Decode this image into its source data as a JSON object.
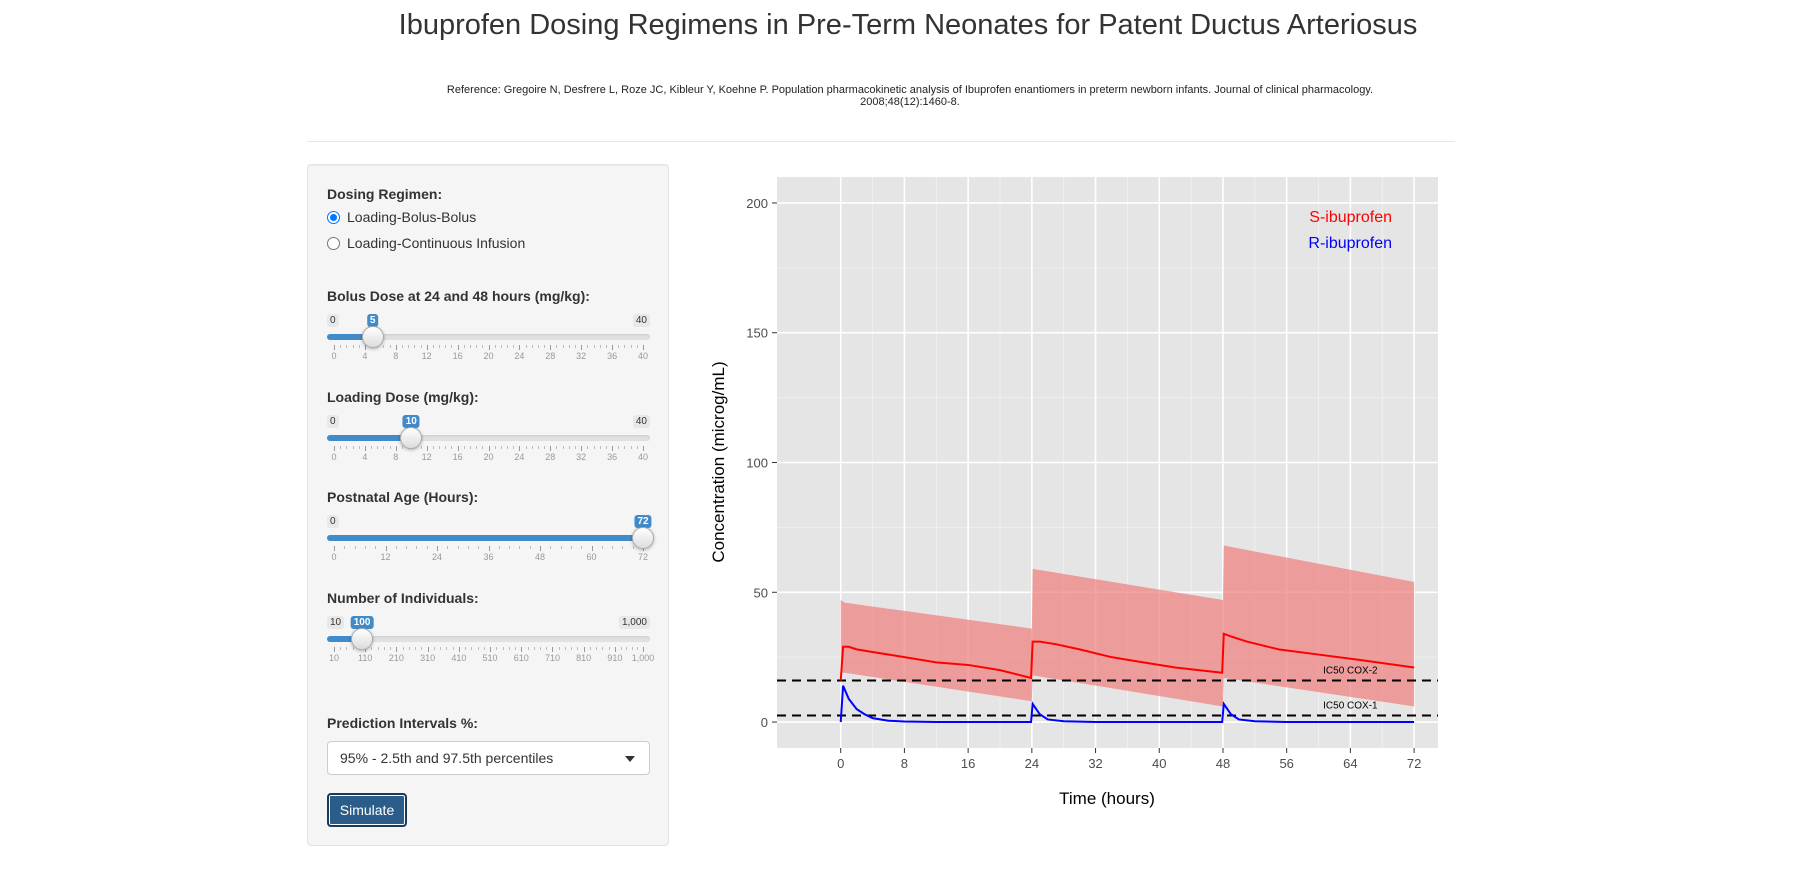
{
  "title": "Ibuprofen Dosing Regimens in Pre-Term Neonates for Patent Ductus Arteriosus",
  "reference": "Reference: Gregoire N, Desfrere L, Roze JC, Kibleur Y, Koehne P. Population pharmacokinetic analysis of Ibuprofen enantiomers in preterm newborn infants. Journal of clinical pharmacology. 2008;48(12):1460-8.",
  "sidebar": {
    "regimen_label": "Dosing Regimen:",
    "regimen_options": [
      {
        "label": "Loading-Bolus-Bolus",
        "checked": true
      },
      {
        "label": "Loading-Continuous Infusion",
        "checked": false
      }
    ],
    "sliders": [
      {
        "label": "Bolus Dose at 24 and 48 hours (mg/kg):",
        "min": 0,
        "max": 40,
        "value": 5,
        "min_label": "0",
        "max_label": "40",
        "value_label": "5",
        "ticks": [
          {
            "v": 0,
            "t": "0"
          },
          {
            "v": 4,
            "t": "4"
          },
          {
            "v": 8,
            "t": "8"
          },
          {
            "v": 12,
            "t": "12"
          },
          {
            "v": 16,
            "t": "16"
          },
          {
            "v": 20,
            "t": "20"
          },
          {
            "v": 24,
            "t": "24"
          },
          {
            "v": 28,
            "t": "28"
          },
          {
            "v": 32,
            "t": "32"
          },
          {
            "v": 36,
            "t": "36"
          },
          {
            "v": 40,
            "t": "40"
          }
        ]
      },
      {
        "label": "Loading Dose (mg/kg):",
        "min": 0,
        "max": 40,
        "value": 10,
        "min_label": "0",
        "max_label": "40",
        "value_label": "10",
        "ticks": [
          {
            "v": 0,
            "t": "0"
          },
          {
            "v": 4,
            "t": "4"
          },
          {
            "v": 8,
            "t": "8"
          },
          {
            "v": 12,
            "t": "12"
          },
          {
            "v": 16,
            "t": "16"
          },
          {
            "v": 20,
            "t": "20"
          },
          {
            "v": 24,
            "t": "24"
          },
          {
            "v": 28,
            "t": "28"
          },
          {
            "v": 32,
            "t": "32"
          },
          {
            "v": 36,
            "t": "36"
          },
          {
            "v": 40,
            "t": "40"
          }
        ]
      },
      {
        "label": "Postnatal Age (Hours):",
        "min": 0,
        "max": 72,
        "value": 72,
        "min_label": "0",
        "max_label": "",
        "value_label": "72",
        "ticks": [
          {
            "v": 0,
            "t": "0"
          },
          {
            "v": 12,
            "t": "12"
          },
          {
            "v": 24,
            "t": "24"
          },
          {
            "v": 36,
            "t": "36"
          },
          {
            "v": 48,
            "t": "48"
          },
          {
            "v": 60,
            "t": "60"
          },
          {
            "v": 72,
            "t": "72"
          }
        ]
      },
      {
        "label": "Number of Individuals:",
        "min": 10,
        "max": 1000,
        "value": 100,
        "min_label": "10",
        "max_label": "1,000",
        "value_label": "100",
        "ticks": [
          {
            "v": 10,
            "t": "10"
          },
          {
            "v": 110,
            "t": "110"
          },
          {
            "v": 210,
            "t": "210"
          },
          {
            "v": 310,
            "t": "310"
          },
          {
            "v": 410,
            "t": "410"
          },
          {
            "v": 510,
            "t": "510"
          },
          {
            "v": 610,
            "t": "610"
          },
          {
            "v": 710,
            "t": "710"
          },
          {
            "v": 810,
            "t": "810"
          },
          {
            "v": 910,
            "t": "910"
          },
          {
            "v": 1000,
            "t": "1,000"
          }
        ]
      }
    ],
    "pi_label": "Prediction Intervals %:",
    "pi_value": "95% - 2.5th and 97.5th percentiles",
    "simulate_label": "Simulate"
  },
  "chart_data": {
    "type": "line",
    "xlabel": "Time (hours)",
    "ylabel": "Concentration (microg/mL)",
    "xlim": [
      -8,
      75
    ],
    "ylim": [
      -10,
      210
    ],
    "x_ticks": [
      0,
      8,
      16,
      24,
      32,
      40,
      48,
      56,
      64,
      72
    ],
    "y_ticks": [
      0,
      50,
      100,
      150,
      200
    ],
    "legend_position": "top-right",
    "legend": [
      {
        "label": "S-ibuprofen",
        "color": "#ff0000"
      },
      {
        "label": "R-ibuprofen",
        "color": "#0000ff"
      }
    ],
    "bands": [
      {
        "series": "S-ibuprofen",
        "color": "#f08080",
        "x": [
          0,
          0.5,
          24,
          24.1,
          48,
          48.1,
          72
        ],
        "upper": [
          47,
          46,
          36,
          59,
          47,
          68,
          54
        ],
        "lower": [
          19,
          19,
          8,
          18,
          6,
          17,
          6
        ]
      }
    ],
    "series": [
      {
        "name": "S-ibuprofen",
        "color": "#ff0000",
        "x": [
          0,
          0.3,
          1,
          2,
          4,
          8,
          12,
          16,
          20,
          23.9,
          24.1,
          25,
          27,
          30,
          34,
          38,
          42,
          47.9,
          48.1,
          49,
          51,
          55,
          60,
          65,
          72
        ],
        "y": [
          16,
          29,
          29,
          28,
          27,
          25,
          23,
          22,
          20,
          17,
          31,
          31,
          30,
          28,
          25,
          23,
          21,
          19,
          34,
          33,
          31,
          28,
          26,
          24,
          21
        ]
      },
      {
        "name": "R-ibuprofen",
        "color": "#0000ff",
        "x": [
          0,
          0.3,
          1,
          2,
          3,
          4,
          6,
          8,
          12,
          23.9,
          24.1,
          25,
          26,
          28,
          32,
          47.9,
          48.1,
          49,
          50,
          52,
          56,
          72
        ],
        "y": [
          0,
          14,
          9,
          5,
          3,
          1.5,
          0.5,
          0.2,
          0,
          0,
          7,
          3,
          1,
          0.3,
          0,
          0,
          7,
          3,
          1,
          0.3,
          0,
          0
        ]
      }
    ],
    "hlines": [
      {
        "y": 16,
        "label": "IC50 COX-2"
      },
      {
        "y": 2.5,
        "label": "IC50 COX-1"
      }
    ]
  }
}
